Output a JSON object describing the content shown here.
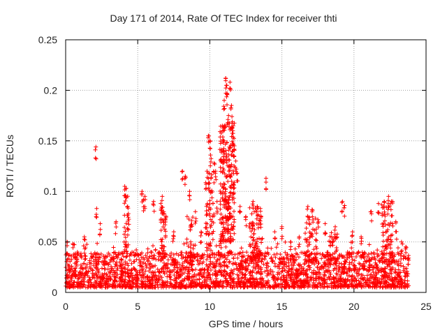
{
  "chart_data": {
    "type": "scatter",
    "title": "Day 171 of 2014, Rate Of TEC Index for receiver thti",
    "xlabel": "GPS time / hours",
    "ylabel": "ROTI / TECUs",
    "xlim": [
      0,
      25
    ],
    "ylim": [
      0,
      0.25
    ],
    "xticks": [
      "0",
      "5",
      "10",
      "15",
      "20",
      "25"
    ],
    "yticks": [
      "0",
      "0.05",
      "0.1",
      "0.15",
      "0.2",
      "0.25"
    ],
    "grid": true,
    "marker": "+",
    "color": "#ff0000",
    "x_data_range": [
      0,
      23.8
    ],
    "baseline": {
      "low": 0.005,
      "high": 0.04
    },
    "spikes": [
      {
        "x": 0.1,
        "y": 0.05
      },
      {
        "x": 0.5,
        "y": 0.048
      },
      {
        "x": 1.3,
        "y": 0.055
      },
      {
        "x": 2.1,
        "y": 0.144
      },
      {
        "x": 2.15,
        "y": 0.083
      },
      {
        "x": 2.4,
        "y": 0.068
      },
      {
        "x": 3.5,
        "y": 0.07
      },
      {
        "x": 4.1,
        "y": 0.105
      },
      {
        "x": 4.2,
        "y": 0.103
      },
      {
        "x": 4.3,
        "y": 0.085
      },
      {
        "x": 4.35,
        "y": 0.078
      },
      {
        "x": 5.3,
        "y": 0.1
      },
      {
        "x": 5.4,
        "y": 0.092
      },
      {
        "x": 5.5,
        "y": 0.095
      },
      {
        "x": 6.1,
        "y": 0.09
      },
      {
        "x": 6.7,
        "y": 0.095
      },
      {
        "x": 6.8,
        "y": 0.08
      },
      {
        "x": 6.9,
        "y": 0.072
      },
      {
        "x": 7.5,
        "y": 0.06
      },
      {
        "x": 8.1,
        "y": 0.12
      },
      {
        "x": 8.3,
        "y": 0.115
      },
      {
        "x": 8.6,
        "y": 0.1
      },
      {
        "x": 9.0,
        "y": 0.08
      },
      {
        "x": 9.4,
        "y": 0.06
      },
      {
        "x": 9.9,
        "y": 0.155
      },
      {
        "x": 10.0,
        "y": 0.15
      },
      {
        "x": 10.05,
        "y": 0.136
      },
      {
        "x": 10.3,
        "y": 0.128
      },
      {
        "x": 10.4,
        "y": 0.12
      },
      {
        "x": 10.5,
        "y": 0.09
      },
      {
        "x": 10.8,
        "y": 0.14
      },
      {
        "x": 10.9,
        "y": 0.16
      },
      {
        "x": 11.0,
        "y": 0.19
      },
      {
        "x": 11.1,
        "y": 0.212
      },
      {
        "x": 11.15,
        "y": 0.205
      },
      {
        "x": 11.2,
        "y": 0.197
      },
      {
        "x": 11.3,
        "y": 0.175
      },
      {
        "x": 11.4,
        "y": 0.208
      },
      {
        "x": 11.5,
        "y": 0.185
      },
      {
        "x": 11.6,
        "y": 0.16
      },
      {
        "x": 11.7,
        "y": 0.145
      },
      {
        "x": 11.8,
        "y": 0.13
      },
      {
        "x": 11.9,
        "y": 0.118
      },
      {
        "x": 12.1,
        "y": 0.085
      },
      {
        "x": 12.5,
        "y": 0.075
      },
      {
        "x": 13.0,
        "y": 0.09
      },
      {
        "x": 13.3,
        "y": 0.085
      },
      {
        "x": 13.9,
        "y": 0.113
      },
      {
        "x": 14.5,
        "y": 0.06
      },
      {
        "x": 15.0,
        "y": 0.065
      },
      {
        "x": 15.6,
        "y": 0.05
      },
      {
        "x": 16.2,
        "y": 0.055
      },
      {
        "x": 16.8,
        "y": 0.085
      },
      {
        "x": 17.1,
        "y": 0.082
      },
      {
        "x": 17.5,
        "y": 0.072
      },
      {
        "x": 18.0,
        "y": 0.068
      },
      {
        "x": 18.7,
        "y": 0.065
      },
      {
        "x": 19.2,
        "y": 0.09
      },
      {
        "x": 19.35,
        "y": 0.086
      },
      {
        "x": 19.9,
        "y": 0.06
      },
      {
        "x": 20.5,
        "y": 0.055
      },
      {
        "x": 21.2,
        "y": 0.08
      },
      {
        "x": 21.7,
        "y": 0.088
      },
      {
        "x": 22.1,
        "y": 0.09
      },
      {
        "x": 22.4,
        "y": 0.095
      },
      {
        "x": 22.6,
        "y": 0.09
      },
      {
        "x": 22.9,
        "y": 0.07
      },
      {
        "x": 23.3,
        "y": 0.05
      },
      {
        "x": 23.6,
        "y": 0.045
      }
    ],
    "clusters": [
      {
        "x": 11.2,
        "width": 1.0,
        "min": 0.05,
        "max": 0.17,
        "count": 260
      },
      {
        "x": 10.0,
        "width": 0.6,
        "min": 0.04,
        "max": 0.12,
        "count": 70
      },
      {
        "x": 13.2,
        "width": 0.9,
        "min": 0.03,
        "max": 0.085,
        "count": 90
      },
      {
        "x": 22.3,
        "width": 0.8,
        "min": 0.03,
        "max": 0.09,
        "count": 80
      },
      {
        "x": 4.2,
        "width": 0.3,
        "min": 0.04,
        "max": 0.1,
        "count": 30
      },
      {
        "x": 6.8,
        "width": 0.4,
        "min": 0.035,
        "max": 0.09,
        "count": 35
      },
      {
        "x": 17.0,
        "width": 0.8,
        "min": 0.03,
        "max": 0.075,
        "count": 50
      },
      {
        "x": 18.5,
        "width": 0.8,
        "min": 0.03,
        "max": 0.06,
        "count": 40
      },
      {
        "x": 8.7,
        "width": 0.6,
        "min": 0.03,
        "max": 0.08,
        "count": 30
      }
    ]
  }
}
